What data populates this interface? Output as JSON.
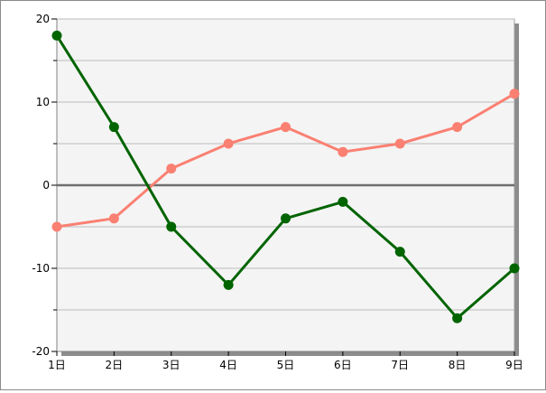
{
  "chart_data": {
    "type": "line",
    "categories": [
      "1日",
      "2日",
      "3日",
      "4日",
      "5日",
      "6日",
      "7日",
      "8日",
      "9日"
    ],
    "series": [
      {
        "values": [
          18,
          7,
          -5,
          -12,
          -4,
          -2,
          -8,
          -16,
          -10
        ],
        "color": "#006400"
      },
      {
        "values": [
          -5,
          -4,
          2,
          5,
          7,
          4,
          5,
          7,
          11
        ],
        "color": "#fa8072"
      }
    ],
    "ylim": [
      -20,
      20
    ],
    "yticks": [
      "20",
      "10",
      "0",
      "-10",
      "-20"
    ],
    "ytick_values": [
      20,
      10,
      0,
      -10,
      -20
    ],
    "grid": true,
    "grid_step": 5,
    "plot_background": "#f4f4f4",
    "title": "",
    "xlabel": "",
    "ylabel": ""
  }
}
